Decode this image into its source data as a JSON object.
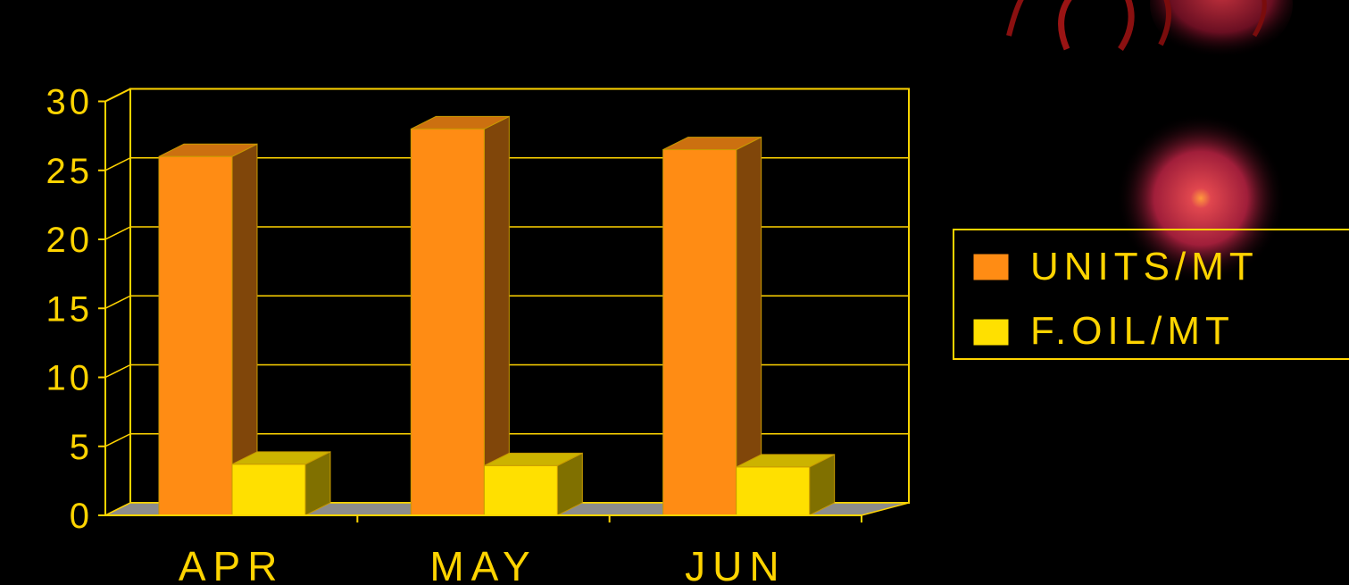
{
  "chart_data": {
    "type": "bar",
    "style": "3d-clustered-column",
    "categories": [
      "APR",
      "MAY",
      "JUN"
    ],
    "series": [
      {
        "name": "UNITS/MT",
        "values": [
          26.0,
          28.0,
          26.5
        ],
        "color": "#FF8C14"
      },
      {
        "name": "F.OIL/MT",
        "values": [
          3.7,
          3.6,
          3.5
        ],
        "color": "#FFE000"
      }
    ],
    "yticks": [
      0,
      5,
      10,
      15,
      20,
      25,
      30
    ],
    "ylim": [
      0,
      30
    ],
    "grid": true,
    "legend_position": "right",
    "axis_color": "#FFD400",
    "background": "#000000",
    "title": "",
    "xlabel": "",
    "ylabel": ""
  }
}
